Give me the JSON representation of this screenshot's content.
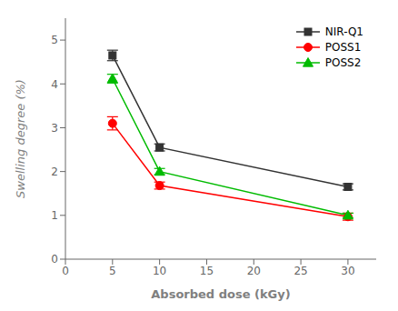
{
  "chart_data": {
    "type": "line",
    "x": [
      5,
      10,
      30
    ],
    "series": [
      {
        "name": "NIR-Q1",
        "color": "#333333",
        "marker": "square",
        "values": [
          4.65,
          2.55,
          1.65
        ],
        "errors": [
          0.12,
          0.08,
          0.07
        ]
      },
      {
        "name": "POSS1",
        "color": "#ff0000",
        "marker": "circle",
        "values": [
          3.1,
          1.68,
          0.97
        ],
        "errors": [
          0.15,
          0.08,
          0.08
        ]
      },
      {
        "name": "POSS2",
        "color": "#00bb00",
        "marker": "triangle",
        "values": [
          4.12,
          2.0,
          1.0
        ],
        "errors": [
          0.1,
          0.07,
          0.05
        ]
      }
    ],
    "xlabel": "Absorbed dose (kGy)",
    "ylabel": "Swelling degree (%)",
    "xlim": [
      0,
      33
    ],
    "ylim": [
      0,
      5.5
    ],
    "xticks": [
      0,
      5,
      10,
      15,
      20,
      25,
      30
    ],
    "yticks": [
      0,
      1,
      2,
      3,
      4,
      5
    ],
    "grid": false,
    "legend": "upper right"
  }
}
